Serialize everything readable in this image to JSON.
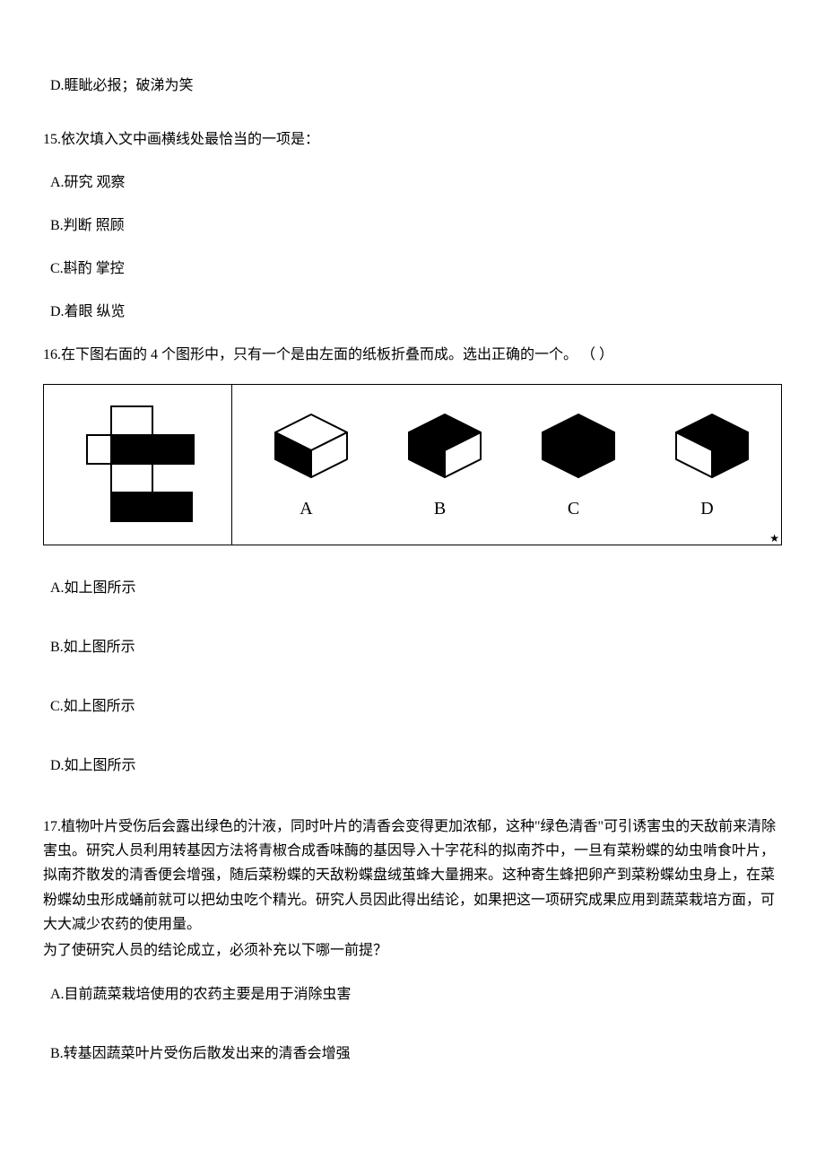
{
  "q14": {
    "option_d": "D.睚眦必报；破涕为笑"
  },
  "q15": {
    "stem": "15.依次填入文中画横线处最恰当的一项是：",
    "a": "A.研究  观察",
    "b": "B.判断  照顾",
    "c": "C.斟酌  掌控",
    "d": "D.着眼  纵览"
  },
  "q16": {
    "stem": "16.在下图右面的 4 个图形中，只有一个是由左面的纸板折叠而成。选出正确的一个。   （           ）",
    "figure": {
      "net": {
        "stroke": "#000000",
        "fill_dark": "#000000",
        "fill_light": "#ffffff"
      },
      "labels": [
        "A",
        "B",
        "C",
        "D"
      ],
      "cubes": {
        "A": {
          "top": "#ffffff",
          "front": "#000000",
          "side": "#ffffff"
        },
        "B": {
          "top": "#000000",
          "front": "#000000",
          "side": "#ffffff"
        },
        "C": {
          "top": "#000000",
          "front": "#000000",
          "side": "#000000"
        },
        "D": {
          "top": "#000000",
          "front": "#ffffff",
          "side": "#000000"
        }
      }
    },
    "a": "A.如上图所示",
    "b": "B.如上图所示",
    "c": "C.如上图所示",
    "d": "D.如上图所示"
  },
  "q17": {
    "p1": "17.植物叶片受伤后会露出绿色的汁液，同时叶片的清香会变得更加浓郁，这种\"绿色清香\"可引诱害虫的天敌前来清除害虫。研究人员利用转基因方法将青椒合成香味酶的基因导入十字花科的拟南芥中，一旦有菜粉蝶的幼虫啃食叶片，拟南芥散发的清香便会增强，随后菜粉蝶的天敌粉蝶盘绒茧蜂大量拥来。这种寄生蜂把卵产到菜粉蝶幼虫身上，在菜粉蝶幼虫形成蛹前就可以把幼虫吃个精光。研究人员因此得出结论，如果把这一项研究成果应用到蔬菜栽培方面，可大大减少农药的使用量。",
    "p2": "为了使研究人员的结论成立，必须补充以下哪一前提？",
    "a": "A.目前蔬菜栽培使用的农药主要是用于消除虫害",
    "b": "B.转基因蔬菜叶片受伤后散发出来的清香会增强"
  }
}
